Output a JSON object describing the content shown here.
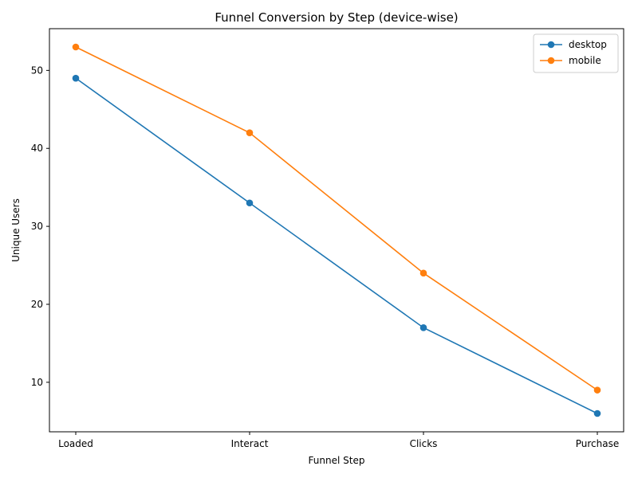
{
  "chart_data": {
    "type": "line",
    "title": "Funnel Conversion by Step (device-wise)",
    "xlabel": "Funnel Step",
    "ylabel": "Unique Users",
    "categories": [
      "Loaded",
      "Interact",
      "Clicks",
      "Purchase"
    ],
    "ylim": [
      3.65,
      55.35
    ],
    "yticks": [
      10,
      20,
      30,
      40,
      50
    ],
    "grid": false,
    "legend_position": "upper right",
    "series": [
      {
        "name": "desktop",
        "color": "#1f77b4",
        "marker": "circle",
        "values": [
          49,
          33,
          17,
          6
        ]
      },
      {
        "name": "mobile",
        "color": "#ff7f0e",
        "marker": "circle",
        "values": [
          53,
          42,
          24,
          9
        ]
      }
    ]
  }
}
